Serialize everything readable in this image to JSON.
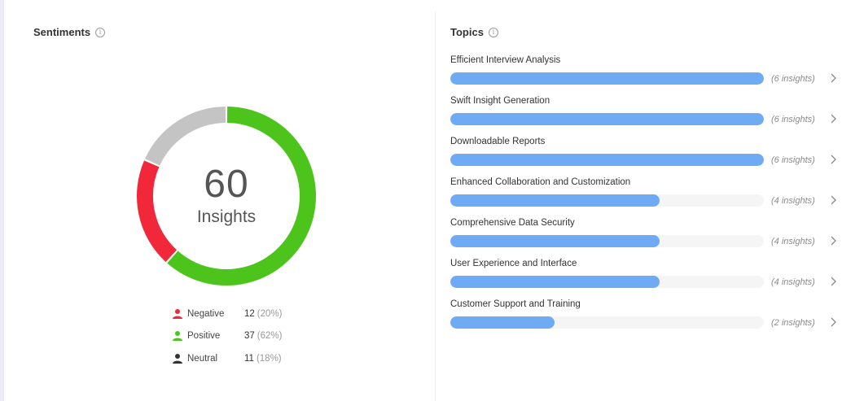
{
  "sentiments": {
    "title": "Sentiments",
    "info_icon": "info-icon",
    "total": "60",
    "total_label": "Insights",
    "segments": [
      {
        "name": "Negative",
        "count": "12",
        "pct": "(20%)",
        "value": 12,
        "color": "#f0283a"
      },
      {
        "name": "Positive",
        "count": "37",
        "pct": "(62%)",
        "value": 37,
        "color": "#4cc41c"
      },
      {
        "name": "Neutral",
        "count": "11",
        "pct": "(18%)",
        "value": 11,
        "color": "#c4c4c4"
      }
    ],
    "icon_colors": {
      "Negative": "#f0283a",
      "Positive": "#4cc41c",
      "Neutral": "#333333"
    }
  },
  "topics": {
    "title": "Topics",
    "info_icon": "info-icon",
    "max_insights": 6,
    "items": [
      {
        "name": "Efficient Interview Analysis",
        "insights": 6,
        "count_label": "(6 insights)"
      },
      {
        "name": "Swift Insight Generation",
        "insights": 6,
        "count_label": "(6 insights)"
      },
      {
        "name": "Downloadable Reports",
        "insights": 6,
        "count_label": "(6 insights)"
      },
      {
        "name": "Enhanced Collaboration and Customization",
        "insights": 4,
        "count_label": "(4 insights)"
      },
      {
        "name": "Comprehensive Data Security",
        "insights": 4,
        "count_label": "(4 insights)"
      },
      {
        "name": "User Experience and Interface",
        "insights": 4,
        "count_label": "(4 insights)"
      },
      {
        "name": "Customer Support and Training",
        "insights": 2,
        "count_label": "(2 insights)"
      }
    ]
  }
}
